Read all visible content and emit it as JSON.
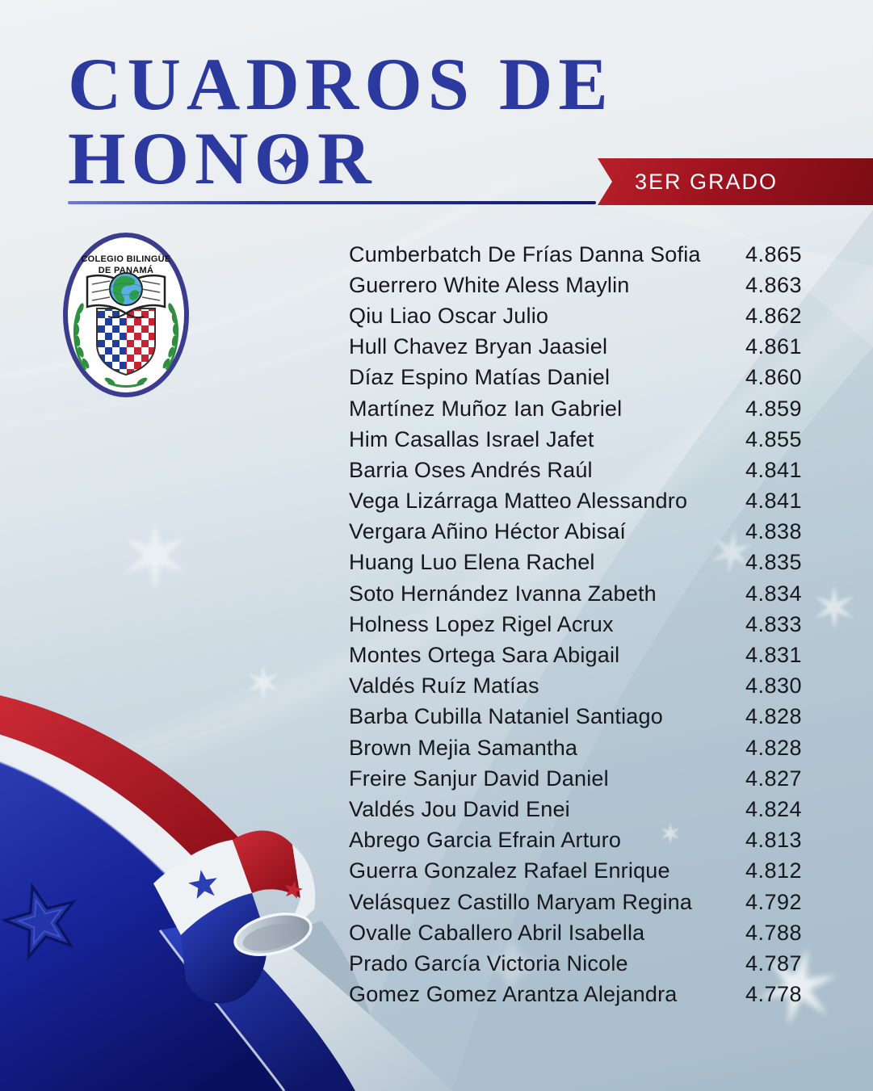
{
  "header": {
    "title_line1": "CUADROS DE",
    "title_line2": {
      "pre": "HON",
      "o": "O",
      "post": "R"
    },
    "sparkle_glyph": "✦",
    "grade_badge": "3ER GRADO"
  },
  "logo": {
    "name_line1": "COLEGIO BILINGÜE",
    "name_line2": "DE PANAMÁ"
  },
  "colors": {
    "title_blue": "#2c3aa0",
    "ribbon_red": "#9d131e",
    "text_dark": "#17171f",
    "flag_blue": "#101b77",
    "flag_red": "#c4202c",
    "background_top": "#eff1f3",
    "background_bottom": "#b2c4d2"
  },
  "students": [
    {
      "name": "Cumberbatch De Frías Danna Sofia",
      "score": "4.865"
    },
    {
      "name": "Guerrero White Aless Maylin",
      "score": "4.863"
    },
    {
      "name": "Qiu Liao Oscar Julio",
      "score": "4.862"
    },
    {
      "name": "Hull Chavez Bryan Jaasiel",
      "score": "4.861"
    },
    {
      "name": "Díaz Espino Matías Daniel",
      "score": "4.860"
    },
    {
      "name": "Martínez Muñoz Ian Gabriel",
      "score": "4.859"
    },
    {
      "name": "Him Casallas Israel Jafet",
      "score": "4.855"
    },
    {
      "name": "Barria Oses Andrés Raúl",
      "score": "4.841"
    },
    {
      "name": "Vega Lizárraga Matteo Alessandro",
      "score": "4.841"
    },
    {
      "name": "Vergara Añino Héctor Abisaí",
      "score": "4.838"
    },
    {
      "name": "Huang Luo Elena Rachel",
      "score": "4.835"
    },
    {
      "name": "Soto Hernández Ivanna Zabeth",
      "score": "4.834"
    },
    {
      "name": "Holness Lopez Rigel Acrux",
      "score": "4.833"
    },
    {
      "name": "Montes Ortega Sara Abigail",
      "score": "4.831"
    },
    {
      "name": "Valdés Ruíz Matías",
      "score": "4.830"
    },
    {
      "name": "Barba Cubilla Nataniel Santiago",
      "score": "4.828"
    },
    {
      "name": "Brown Mejia Samantha",
      "score": "4.828"
    },
    {
      "name": "Freire Sanjur David Daniel",
      "score": "4.827"
    },
    {
      "name": "Valdés Jou David Enei",
      "score": "4.824"
    },
    {
      "name": "Abrego Garcia Efrain Arturo",
      "score": "4.813"
    },
    {
      "name": "Guerra Gonzalez Rafael Enrique",
      "score": "4.812"
    },
    {
      "name": "Velásquez Castillo Maryam Regina",
      "score": "4.792"
    },
    {
      "name": "Ovalle Caballero Abril Isabella",
      "score": "4.788"
    },
    {
      "name": "Prado García Victoria Nicole",
      "score": "4.787"
    },
    {
      "name": "Gomez Gomez Arantza Alejandra",
      "score": "4.778"
    }
  ]
}
